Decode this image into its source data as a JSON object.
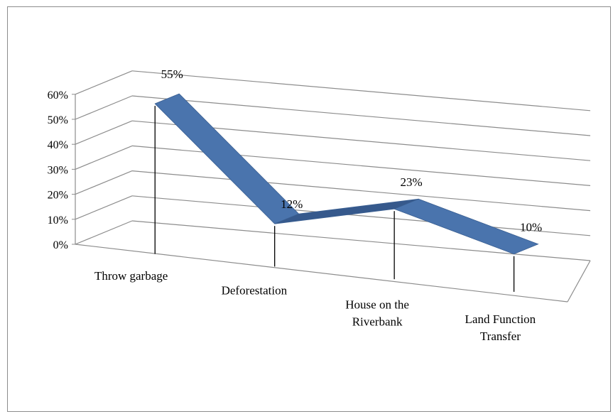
{
  "chart_data": {
    "type": "line",
    "view": "3d",
    "title": "",
    "xlabel": "",
    "ylabel": "",
    "categories": [
      [
        "Throw garbage"
      ],
      [
        "Deforestation"
      ],
      [
        "House on the",
        "Riverbank"
      ],
      [
        "Land Function",
        "Transfer"
      ]
    ],
    "series": [
      {
        "values": [
          0.55,
          0.12,
          0.23,
          0.1
        ],
        "data_labels": [
          "55%",
          "12%",
          "23%",
          "10%"
        ]
      }
    ],
    "ylim": [
      0,
      0.6
    ],
    "yticks": [
      "0%",
      "10%",
      "20%",
      "30%",
      "40%",
      "50%",
      "60%"
    ],
    "grid": true,
    "legend": "none",
    "colors": {
      "ribbon": "#4a74ad",
      "ribbon_dark": "#36598c",
      "grid": "#8c8c8c",
      "drop_line": "#000000"
    }
  }
}
